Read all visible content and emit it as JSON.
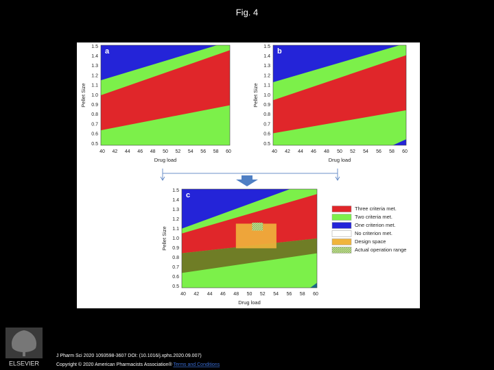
{
  "title": "Fig. 4",
  "figure": {
    "panels": [
      {
        "label": "a",
        "y_axis_label": "Pellet Size",
        "x_axis_label": "Drug load",
        "yticks": [
          "1.5",
          "1.4",
          "1.3",
          "1.2",
          "1.1",
          "1.0",
          "0.9",
          "0.8",
          "0.7",
          "0.6",
          "0.5"
        ],
        "xticks": [
          "40",
          "42",
          "44",
          "46",
          "48",
          "50",
          "52",
          "54",
          "56",
          "58",
          "60"
        ]
      },
      {
        "label": "b",
        "y_axis_label": "Pellet Size",
        "x_axis_label": "Drug load",
        "yticks": [
          "1.5",
          "1.4",
          "1.3",
          "1.2",
          "1.1",
          "1.0",
          "0.9",
          "0.8",
          "0.7",
          "0.6",
          "0.5"
        ],
        "xticks": [
          "40",
          "42",
          "44",
          "46",
          "48",
          "50",
          "52",
          "54",
          "56",
          "58",
          "60"
        ]
      },
      {
        "label": "c",
        "y_axis_label": "Pellet Size",
        "x_axis_label": "Drug load",
        "yticks": [
          "1.5",
          "1.4",
          "1.3",
          "1.2",
          "1.1",
          "1.0",
          "0.9",
          "0.8",
          "0.7",
          "0.6",
          "0.5"
        ],
        "xticks": [
          "40",
          "42",
          "44",
          "46",
          "48",
          "50",
          "52",
          "54",
          "56",
          "58",
          "60"
        ]
      }
    ],
    "legend": [
      "Three criteria met.",
      "Two criteria met.",
      "One criterion met.",
      "No criterion met.",
      "Design space",
      "Actual operation range"
    ]
  },
  "publisher": "ELSEVIER",
  "footer": {
    "citation": "J Pharm Sci 2020 1093598-3607 DOI: (10.1016/j.xphs.2020.09.007)",
    "copyright": "Copyright © 2020 American Pharmacists Association® ",
    "link": "Terms and Conditions"
  }
}
